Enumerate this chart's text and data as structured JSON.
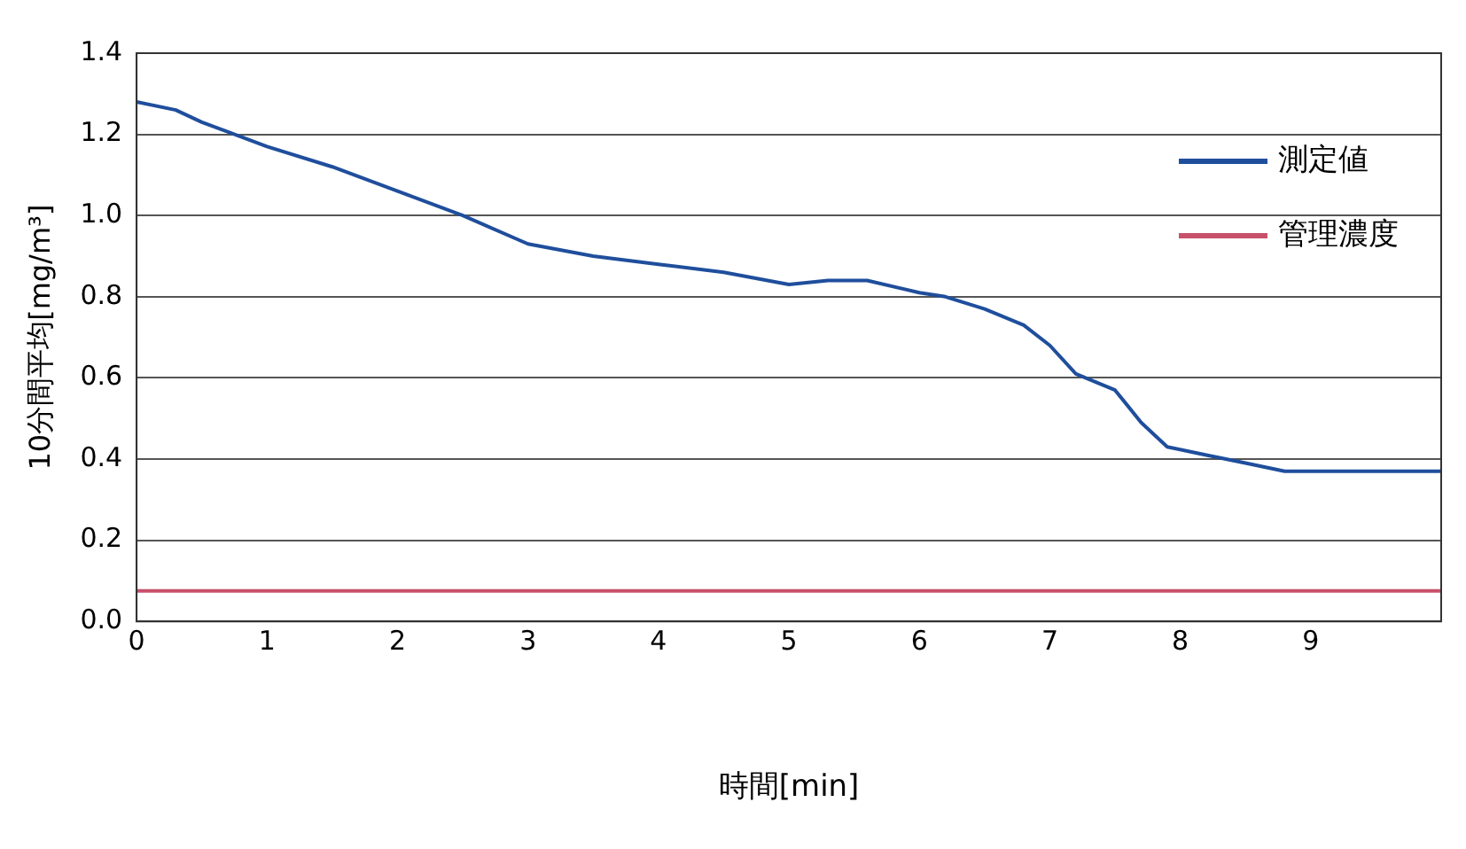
{
  "chart_data": {
    "type": "line",
    "xlabel": "時間[min]",
    "ylabel": "10分間平均[mg/m³]",
    "xlim": [
      0,
      10
    ],
    "xticks": [
      0,
      1,
      2,
      3,
      4,
      5,
      6,
      7,
      8,
      9
    ],
    "ylim": [
      0,
      1.4
    ],
    "yticks": [
      {
        "value": 0,
        "label": "0.0"
      },
      0.2,
      0.4,
      0.6,
      0.8,
      {
        "value": 1,
        "label": "1.0"
      },
      1.2,
      1.4
    ],
    "grid": "y",
    "legend": "top right",
    "marker": "none",
    "line_style": "solid",
    "series": [
      {
        "name": "測定値",
        "color": "#1f4e9c",
        "x": [
          0,
          0.3,
          0.5,
          1,
          1.5,
          2,
          2.5,
          3,
          3.5,
          4,
          4.5,
          5,
          5.3,
          5.6,
          6,
          6.2,
          6.5,
          6.8,
          7,
          7.2,
          7.5,
          7.7,
          7.9,
          8.2,
          8.5,
          8.8,
          9,
          9.5,
          10
        ],
        "values": [
          1.28,
          1.26,
          1.23,
          1.17,
          1.12,
          1.06,
          1.0,
          0.93,
          0.9,
          0.88,
          0.86,
          0.83,
          0.84,
          0.84,
          0.81,
          0.8,
          0.77,
          0.73,
          0.68,
          0.61,
          0.57,
          0.49,
          0.43,
          0.41,
          0.39,
          0.37,
          0.37,
          0.37,
          0.37
        ]
      },
      {
        "name": "管理濃度",
        "color": "#c8506a",
        "x": [
          0,
          10
        ],
        "values": [
          0.075,
          0.075
        ]
      }
    ]
  }
}
